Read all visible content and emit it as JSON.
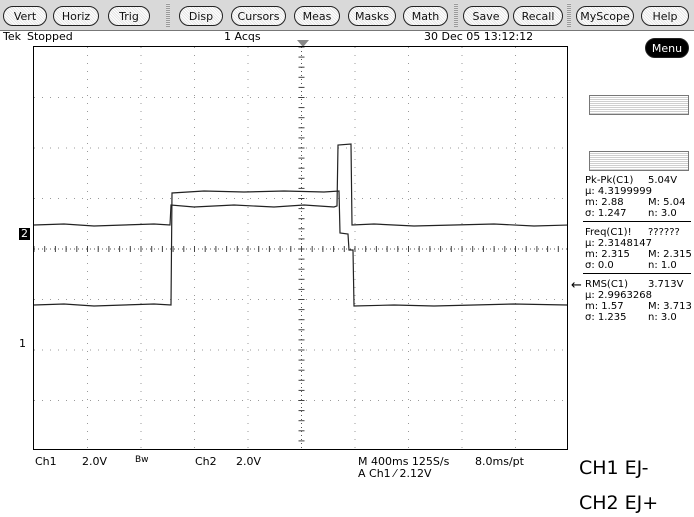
{
  "menu": {
    "buttons": [
      "Vert",
      "Horiz",
      "Trig",
      "Disp",
      "Cursors",
      "Meas",
      "Masks",
      "Math",
      "Save",
      "Recall",
      "MyScope",
      "Help"
    ],
    "menu_button": "Menu"
  },
  "status": {
    "brand": "Tek",
    "state": "Stopped",
    "acqs": "1 Acqs",
    "datetime": "30 Dec 05 13:12:12"
  },
  "markers": {
    "ch2": "2",
    "ch1": "1",
    "arrow": "←"
  },
  "measurements": [
    {
      "title": "Pk-Pk(C1)",
      "value": "5.04V",
      "mu": "μ: 4.3199999",
      "m_min": "m: 2.88",
      "m_max": "M: 5.04",
      "sigma": "σ: 1.247",
      "n": "n: 3.0"
    },
    {
      "title": "Freq(C1)!",
      "value": "??????",
      "mu": "μ: 2.3148147",
      "m_min": "m: 2.315",
      "m_max": "M: 2.315",
      "sigma": "σ: 0.0",
      "n": "n: 1.0"
    },
    {
      "title": "RMS(C1)",
      "value": "3.713V",
      "mu": "μ: 2.9963268",
      "m_min": "m: 1.57",
      "m_max": "M: 3.713",
      "sigma": "σ: 1.235",
      "n": "n: 3.0"
    }
  ],
  "bottom": {
    "ch1_label": "Ch1",
    "ch1_scale": "2.0V",
    "bw": "Bw",
    "ch2_label": "Ch2",
    "ch2_scale": "2.0V",
    "timebase": "M 400ms 125S/s",
    "trigger": "A Ch1 ⁄ 2.12V",
    "pt": "8.0ms/pt"
  },
  "legend": {
    "ch1": "CH1 EJ-",
    "ch2": "CH2 EJ+"
  }
}
